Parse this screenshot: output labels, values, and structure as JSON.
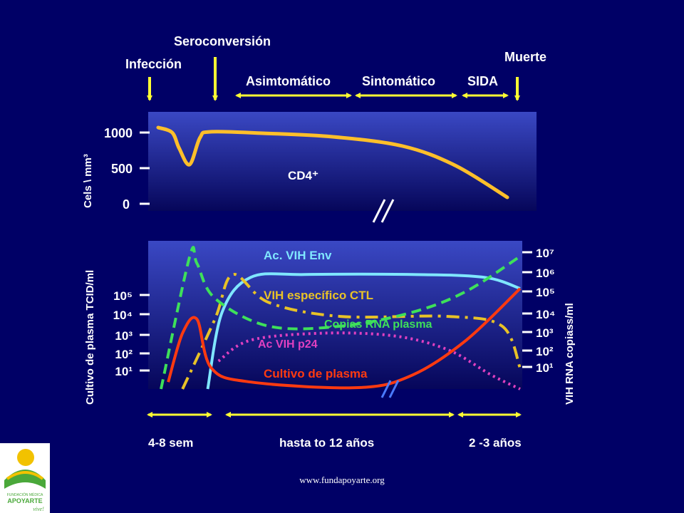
{
  "colors": {
    "background": "#000066",
    "cd4": "#ffbf2a",
    "env": "#7fe6ff",
    "ctl": "#e8c227",
    "rna": "#3ee05a",
    "p24": "#e040c0",
    "culture": "#ff3a10",
    "arrow": "#ffff33",
    "logo_green": "#4aa83a",
    "logo_yellow": "#f2c200"
  },
  "events": {
    "infeccion": "Infección",
    "seroconversion": "Seroconversión",
    "muerte": "Muerte"
  },
  "phases": {
    "asintomatico": "Asimtomático",
    "sintomatico": "Sintomático",
    "sida": "SIDA"
  },
  "durations": {
    "early": "4-8 sem",
    "middle": "hasta to 12 años",
    "late": "2 -3  años"
  },
  "footer": {
    "url": "www.fundapoyarte.org"
  },
  "logo": {
    "line1": "FUNDACIÓN MÉDICA",
    "line2": "APOYARTE",
    "tagline": "vive!"
  },
  "chart_data": [
    {
      "type": "line",
      "ylabel": "Cels \\ mm³",
      "ylim": [
        0,
        1000
      ],
      "yticks": [
        "0",
        "500",
        "1000"
      ],
      "series": [
        {
          "name": "CD4⁺",
          "x": [
            0,
            0.04,
            0.06,
            0.09,
            0.12,
            0.15,
            0.3,
            0.5,
            0.7,
            0.85,
            1.0
          ],
          "values": [
            1070,
            1000,
            780,
            550,
            930,
            1010,
            990,
            940,
            810,
            540,
            90
          ]
        }
      ]
    },
    {
      "type": "line",
      "ylabel": "Cultivo de plasma TCID/ml",
      "y2label": "VIH  RNA copiass/ml",
      "yticks_left": [
        "10¹",
        "10²",
        "10³",
        "10⁴",
        "10⁵"
      ],
      "yticks_right": [
        "10¹",
        "10²",
        "10³",
        "10⁴",
        "10⁵",
        "10⁶",
        "10⁷"
      ],
      "series": [
        {
          "name": "Ac. VIH Env",
          "x": [
            0.13,
            0.17,
            0.25,
            0.4,
            0.7,
            0.9,
            1.0
          ],
          "values": [
            0.0,
            0.55,
            0.8,
            0.82,
            0.82,
            0.8,
            0.72
          ]
        },
        {
          "name": "VIH específico CTL",
          "x": [
            0.06,
            0.15,
            0.2,
            0.3,
            0.5,
            0.8,
            0.95,
            1.0
          ],
          "values": [
            0.0,
            0.5,
            0.82,
            0.62,
            0.52,
            0.52,
            0.45,
            0.15
          ]
        },
        {
          "name": "Copias RNA plasma",
          "x": [
            0.0,
            0.08,
            0.1,
            0.15,
            0.3,
            0.5,
            0.7,
            0.85,
            1.0
          ],
          "values": [
            0.0,
            0.95,
            0.9,
            0.65,
            0.45,
            0.45,
            0.55,
            0.7,
            0.95
          ]
        },
        {
          "name": "Ac VIH p24",
          "x": [
            0.16,
            0.25,
            0.45,
            0.65,
            0.8,
            0.92,
            1.0
          ],
          "values": [
            0.2,
            0.35,
            0.4,
            0.38,
            0.28,
            0.1,
            0.0
          ]
        },
        {
          "name": "Cultivo de plasma",
          "x": [
            0.02,
            0.06,
            0.1,
            0.14,
            0.25,
            0.55,
            0.7,
            0.85,
            1.0
          ],
          "values": [
            0.05,
            0.4,
            0.5,
            0.15,
            0.05,
            0.01,
            0.1,
            0.35,
            0.72
          ]
        }
      ]
    }
  ]
}
